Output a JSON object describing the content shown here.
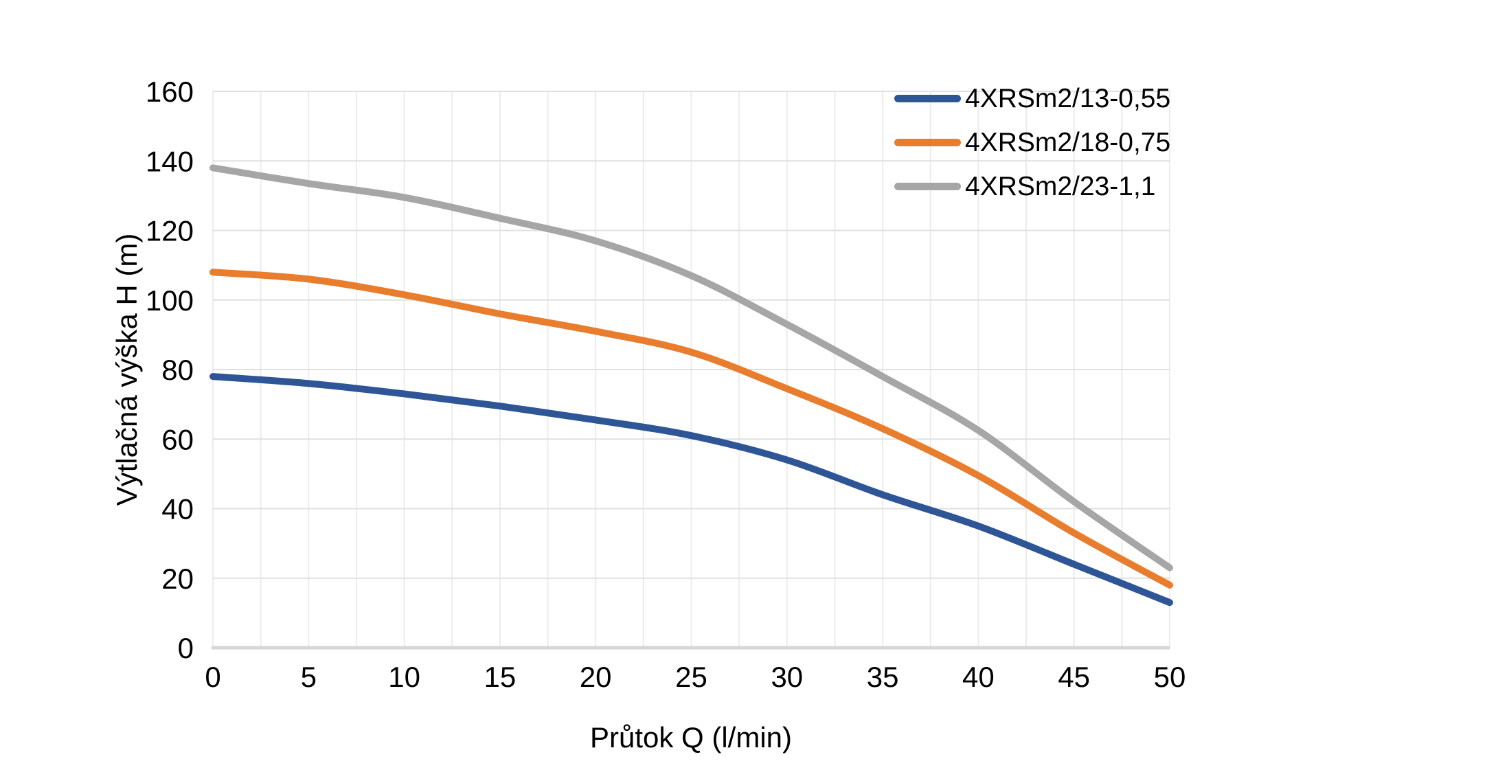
{
  "chart_data": {
    "type": "line",
    "title": "",
    "xlabel": "Průtok Q (l/min)",
    "ylabel": "Výtlačná výška H (m)",
    "x": [
      0,
      5,
      10,
      15,
      20,
      25,
      30,
      35,
      40,
      45,
      50
    ],
    "series": [
      {
        "name": "4XRSm2/13-0,55",
        "color": "#2E5596",
        "values": [
          78,
          76,
          73,
          69.5,
          65.5,
          61,
          54,
          44,
          35,
          24,
          13
        ]
      },
      {
        "name": "4XRSm2/18-0,75",
        "color": "#E87D2E",
        "values": [
          108,
          106,
          101.5,
          96,
          91,
          85,
          74.5,
          63,
          49.5,
          33,
          18
        ]
      },
      {
        "name": "4XRSm2/23-1,1",
        "color": "#A6A6A6",
        "values": [
          138,
          133.5,
          129.5,
          123.5,
          117,
          107,
          93,
          78,
          62.5,
          42,
          23
        ]
      }
    ],
    "xlim": [
      0,
      50
    ],
    "ylim": [
      0,
      160
    ],
    "x_ticks": [
      0,
      5,
      10,
      15,
      20,
      25,
      30,
      35,
      40,
      45,
      50
    ],
    "y_ticks": [
      0,
      20,
      40,
      60,
      80,
      100,
      120,
      140,
      160
    ],
    "x_minor_grid_step": 2.5,
    "grid": true,
    "legend_position": "top-right",
    "colors": {
      "vertical_grid": "#ECECEC",
      "horizontal_grid": "#E0E0E0",
      "axis_line": "#D6D6D6",
      "text": "#000000"
    }
  }
}
